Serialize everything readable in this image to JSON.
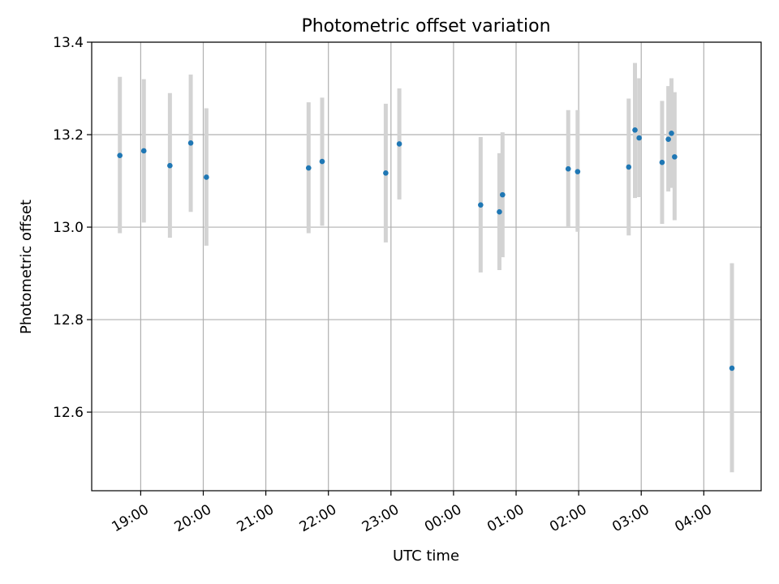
{
  "chart_data": {
    "type": "scatter",
    "title": "Photometric offset variation",
    "xlabel": "UTC time",
    "ylabel": "Photometric offset",
    "ylim": [
      12.43,
      13.4
    ],
    "xlim": [
      "18:13",
      "04:55"
    ],
    "yticks": [
      12.6,
      12.8,
      13.0,
      13.2,
      13.4
    ],
    "ytick_labels": [
      "12.6",
      "12.8",
      "13.0",
      "13.2",
      "13.4"
    ],
    "xticks": [
      "19:00",
      "20:00",
      "21:00",
      "22:00",
      "23:00",
      "00:00",
      "01:00",
      "02:00",
      "03:00",
      "04:00"
    ],
    "grid": true,
    "colors": {
      "marker": "#1f77b4",
      "errorbar": "#d3d3d3",
      "grid": "#b0b0b0"
    },
    "points": [
      {
        "time": "18:40",
        "y": 13.155,
        "ylow": 12.987,
        "yhigh": 13.325
      },
      {
        "time": "19:03",
        "y": 13.165,
        "ylow": 13.01,
        "yhigh": 13.32
      },
      {
        "time": "19:28",
        "y": 13.133,
        "ylow": 12.977,
        "yhigh": 13.29
      },
      {
        "time": "19:48",
        "y": 13.182,
        "ylow": 13.033,
        "yhigh": 13.33
      },
      {
        "time": "20:03",
        "y": 13.108,
        "ylow": 12.96,
        "yhigh": 13.257
      },
      {
        "time": "21:41",
        "y": 13.128,
        "ylow": 12.987,
        "yhigh": 13.27
      },
      {
        "time": "21:54",
        "y": 13.142,
        "ylow": 13.003,
        "yhigh": 13.28
      },
      {
        "time": "22:55",
        "y": 13.117,
        "ylow": 12.967,
        "yhigh": 13.267
      },
      {
        "time": "23:08",
        "y": 13.18,
        "ylow": 13.06,
        "yhigh": 13.3
      },
      {
        "time": "00:26",
        "y": 13.048,
        "ylow": 12.902,
        "yhigh": 13.195
      },
      {
        "time": "00:44",
        "y": 13.033,
        "ylow": 12.907,
        "yhigh": 13.16
      },
      {
        "time": "00:47",
        "y": 13.07,
        "ylow": 12.935,
        "yhigh": 13.205
      },
      {
        "time": "01:50",
        "y": 13.126,
        "ylow": 13.0,
        "yhigh": 13.253
      },
      {
        "time": "01:59",
        "y": 13.12,
        "ylow": 12.99,
        "yhigh": 13.253
      },
      {
        "time": "02:48",
        "y": 13.13,
        "ylow": 12.982,
        "yhigh": 13.278
      },
      {
        "time": "02:54",
        "y": 13.21,
        "ylow": 13.063,
        "yhigh": 13.355
      },
      {
        "time": "02:58",
        "y": 13.193,
        "ylow": 13.065,
        "yhigh": 13.322
      },
      {
        "time": "03:20",
        "y": 13.14,
        "ylow": 13.007,
        "yhigh": 13.273
      },
      {
        "time": "03:26",
        "y": 13.19,
        "ylow": 13.077,
        "yhigh": 13.305
      },
      {
        "time": "03:29",
        "y": 13.203,
        "ylow": 13.085,
        "yhigh": 13.322
      },
      {
        "time": "03:32",
        "y": 13.152,
        "ylow": 13.015,
        "yhigh": 13.292
      },
      {
        "time": "04:27",
        "y": 12.695,
        "ylow": 12.47,
        "yhigh": 12.922
      }
    ]
  }
}
